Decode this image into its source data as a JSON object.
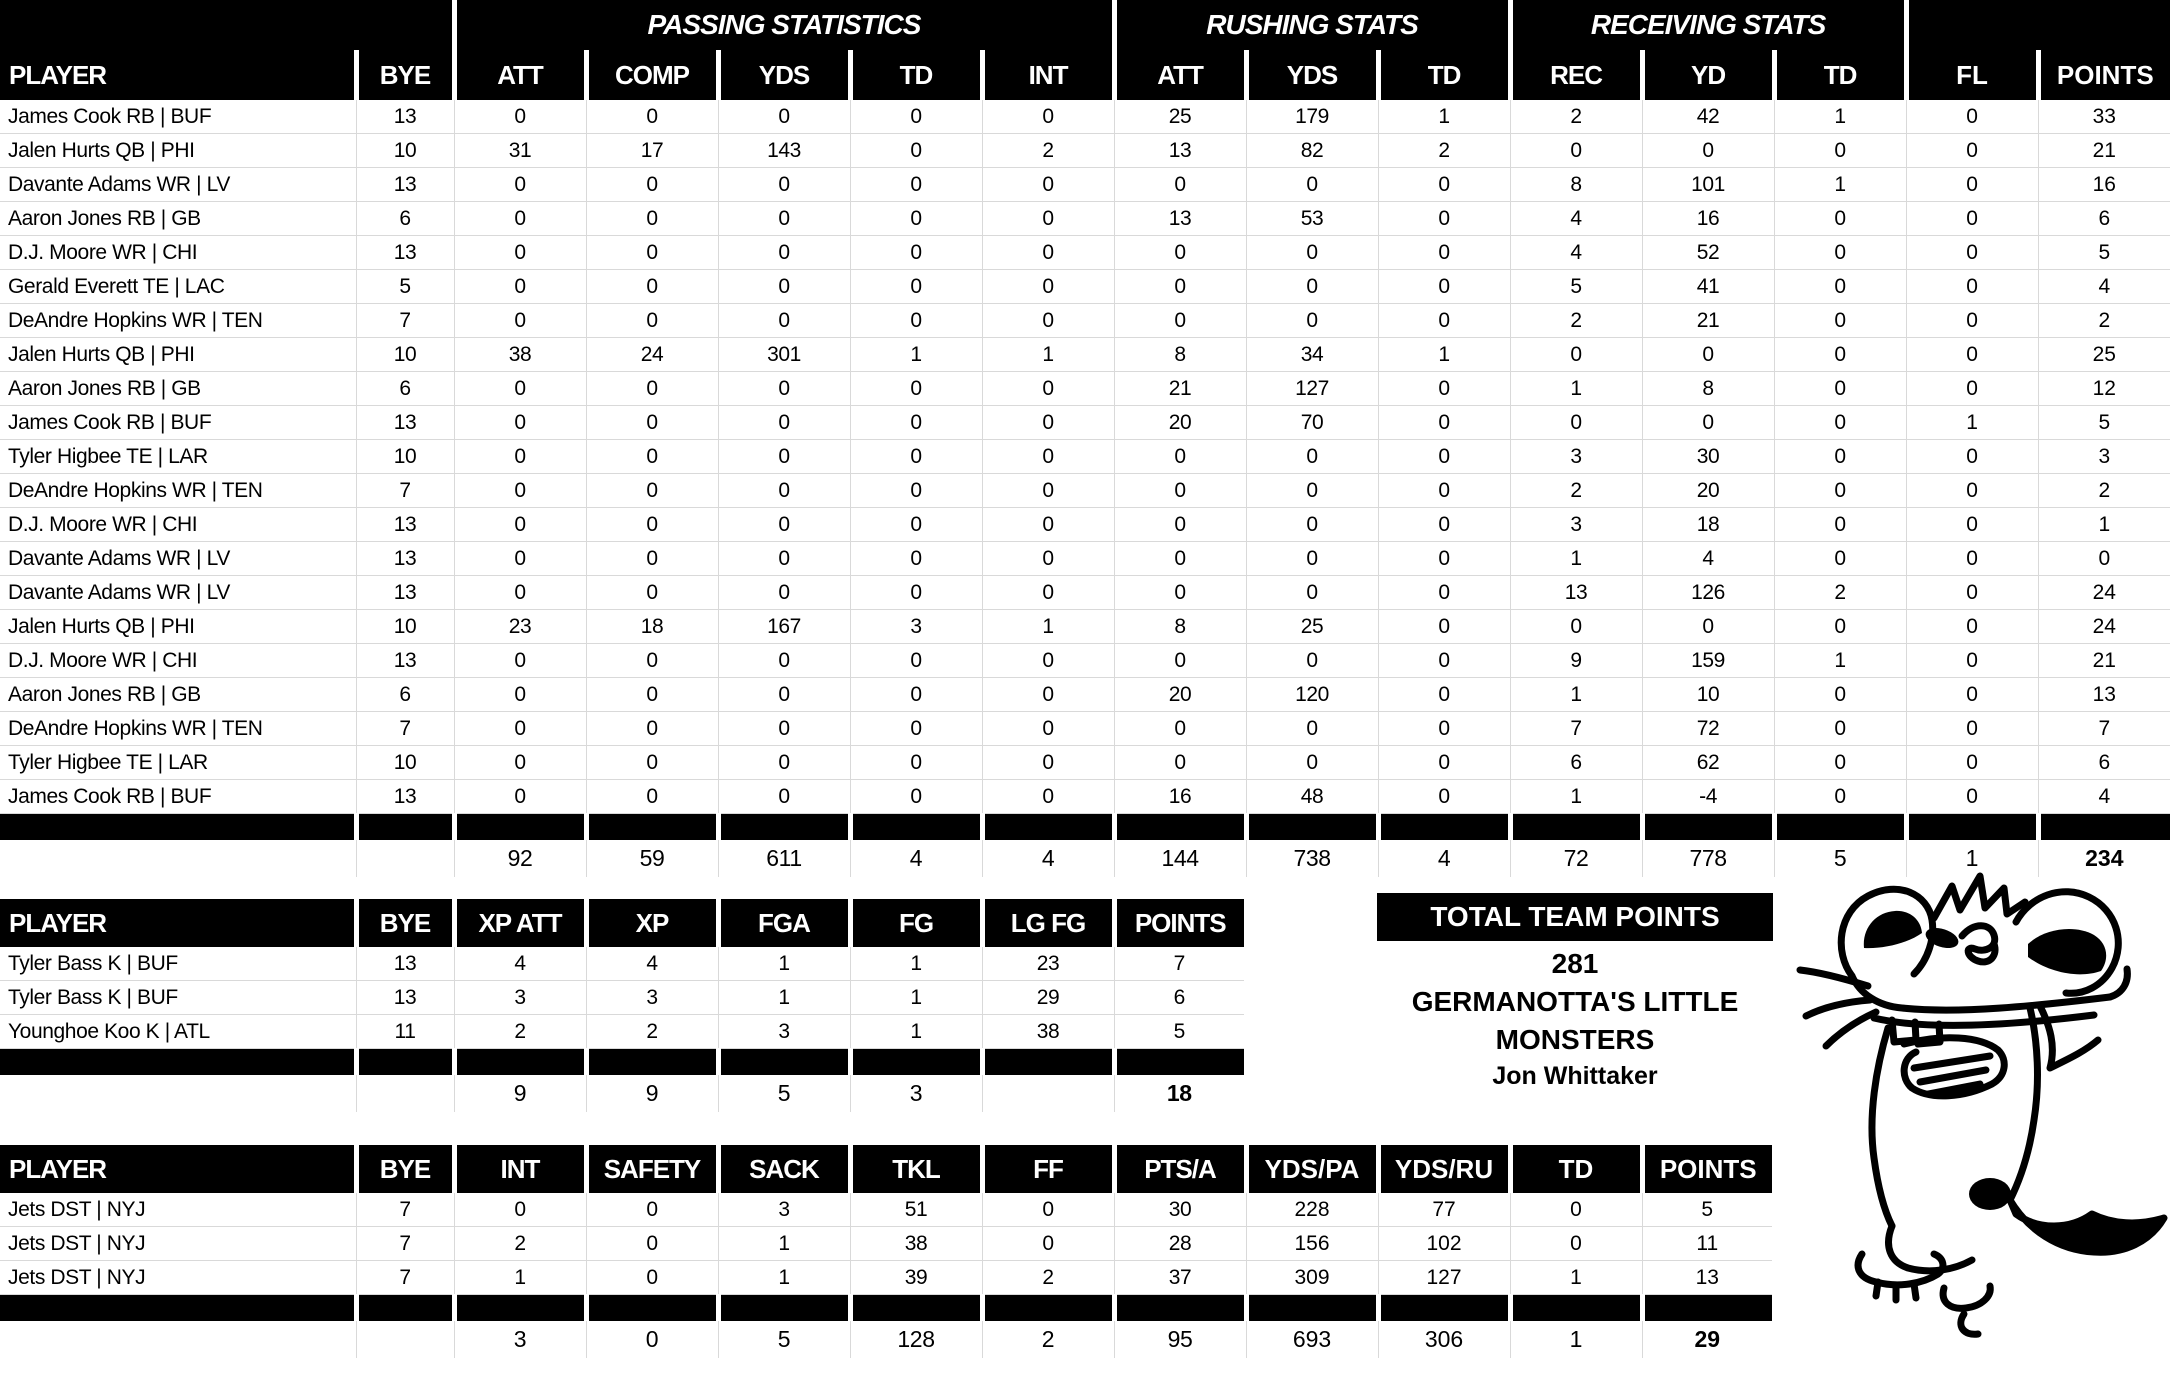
{
  "colors": {
    "header_bg": "#000000",
    "header_text": "#ffffff",
    "grid_line": "#d9d9d9",
    "body_text": "#000000",
    "page_bg": "#ffffff"
  },
  "icons": {
    "mascot": "rat-doodle-drawing"
  },
  "main_table": {
    "group_headers": [
      {
        "label": "",
        "span": 2
      },
      {
        "label": "PASSING STATISTICS",
        "span": 5
      },
      {
        "label": "RUSHING STATS",
        "span": 3
      },
      {
        "label": "RECEIVING STATS",
        "span": 3
      },
      {
        "label": "",
        "span": 2
      }
    ],
    "columns": [
      "PLAYER",
      "BYE",
      "ATT",
      "COMP",
      "YDS",
      "TD",
      "INT",
      "ATT",
      "YDS",
      "TD",
      "REC",
      "YD",
      "TD",
      "FL",
      "POINTS"
    ],
    "rows": [
      [
        "James Cook RB | BUF",
        13,
        0,
        0,
        0,
        0,
        0,
        25,
        179,
        1,
        2,
        42,
        1,
        0,
        33
      ],
      [
        "Jalen Hurts QB | PHI",
        10,
        31,
        17,
        143,
        0,
        2,
        13,
        82,
        2,
        0,
        0,
        0,
        0,
        21
      ],
      [
        "Davante Adams WR | LV",
        13,
        0,
        0,
        0,
        0,
        0,
        0,
        0,
        0,
        8,
        101,
        1,
        0,
        16
      ],
      [
        "Aaron Jones RB | GB",
        6,
        0,
        0,
        0,
        0,
        0,
        13,
        53,
        0,
        4,
        16,
        0,
        0,
        6
      ],
      [
        "D.J. Moore WR | CHI",
        13,
        0,
        0,
        0,
        0,
        0,
        0,
        0,
        0,
        4,
        52,
        0,
        0,
        5
      ],
      [
        "Gerald Everett TE | LAC",
        5,
        0,
        0,
        0,
        0,
        0,
        0,
        0,
        0,
        5,
        41,
        0,
        0,
        4
      ],
      [
        "DeAndre Hopkins WR | TEN",
        7,
        0,
        0,
        0,
        0,
        0,
        0,
        0,
        0,
        2,
        21,
        0,
        0,
        2
      ],
      [
        "Jalen Hurts QB | PHI",
        10,
        38,
        24,
        301,
        1,
        1,
        8,
        34,
        1,
        0,
        0,
        0,
        0,
        25
      ],
      [
        "Aaron Jones RB | GB",
        6,
        0,
        0,
        0,
        0,
        0,
        21,
        127,
        0,
        1,
        8,
        0,
        0,
        12
      ],
      [
        "James Cook RB | BUF",
        13,
        0,
        0,
        0,
        0,
        0,
        20,
        70,
        0,
        0,
        0,
        0,
        1,
        5
      ],
      [
        "Tyler Higbee TE | LAR",
        10,
        0,
        0,
        0,
        0,
        0,
        0,
        0,
        0,
        3,
        30,
        0,
        0,
        3
      ],
      [
        "DeAndre Hopkins WR | TEN",
        7,
        0,
        0,
        0,
        0,
        0,
        0,
        0,
        0,
        2,
        20,
        0,
        0,
        2
      ],
      [
        "D.J. Moore WR | CHI",
        13,
        0,
        0,
        0,
        0,
        0,
        0,
        0,
        0,
        3,
        18,
        0,
        0,
        1
      ],
      [
        "Davante Adams WR | LV",
        13,
        0,
        0,
        0,
        0,
        0,
        0,
        0,
        0,
        1,
        4,
        0,
        0,
        0
      ],
      [
        "Davante Adams WR | LV",
        13,
        0,
        0,
        0,
        0,
        0,
        0,
        0,
        0,
        13,
        126,
        2,
        0,
        24
      ],
      [
        "Jalen Hurts QB | PHI",
        10,
        23,
        18,
        167,
        3,
        1,
        8,
        25,
        0,
        0,
        0,
        0,
        0,
        24
      ],
      [
        "D.J. Moore WR | CHI",
        13,
        0,
        0,
        0,
        0,
        0,
        0,
        0,
        0,
        9,
        159,
        1,
        0,
        21
      ],
      [
        "Aaron Jones RB | GB",
        6,
        0,
        0,
        0,
        0,
        0,
        20,
        120,
        0,
        1,
        10,
        0,
        0,
        13
      ],
      [
        "DeAndre Hopkins WR | TEN",
        7,
        0,
        0,
        0,
        0,
        0,
        0,
        0,
        0,
        7,
        72,
        0,
        0,
        7
      ],
      [
        "Tyler Higbee TE | LAR",
        10,
        0,
        0,
        0,
        0,
        0,
        0,
        0,
        0,
        6,
        62,
        0,
        0,
        6
      ],
      [
        "James Cook RB | BUF",
        13,
        0,
        0,
        0,
        0,
        0,
        16,
        48,
        0,
        1,
        -4,
        0,
        0,
        4
      ]
    ],
    "totals": [
      "",
      "",
      92,
      59,
      611,
      4,
      4,
      144,
      738,
      4,
      72,
      778,
      5,
      1,
      234
    ]
  },
  "kicker_table": {
    "columns": [
      "PLAYER",
      "BYE",
      "XP ATT",
      "XP",
      "FGA",
      "FG",
      "LG FG",
      "POINTS"
    ],
    "rows": [
      [
        "Tyler Bass K | BUF",
        13,
        4,
        4,
        1,
        1,
        23,
        7
      ],
      [
        "Tyler Bass K | BUF",
        13,
        3,
        3,
        1,
        1,
        29,
        6
      ],
      [
        "Younghoe Koo K | ATL",
        11,
        2,
        2,
        3,
        1,
        38,
        5
      ]
    ],
    "totals": [
      "",
      "",
      9,
      9,
      5,
      3,
      "",
      18
    ]
  },
  "dst_table": {
    "columns": [
      "PLAYER",
      "BYE",
      "INT",
      "SAFETY",
      "SACK",
      "TKL",
      "FF",
      "PTS/A",
      "YDS/PA",
      "YDS/RU",
      "TD",
      "POINTS"
    ],
    "rows": [
      [
        "Jets DST | NYJ",
        7,
        0,
        0,
        3,
        51,
        0,
        30,
        228,
        77,
        0,
        5
      ],
      [
        "Jets DST | NYJ",
        7,
        2,
        0,
        1,
        38,
        0,
        28,
        156,
        102,
        0,
        11
      ],
      [
        "Jets DST | NYJ",
        7,
        1,
        0,
        1,
        39,
        2,
        37,
        309,
        127,
        1,
        13
      ]
    ],
    "totals": [
      "",
      "",
      3,
      0,
      5,
      128,
      2,
      95,
      693,
      306,
      1,
      29
    ]
  },
  "team_summary": {
    "title": "TOTAL TEAM POINTS",
    "points": "281",
    "team_name": "GERMANOTTA'S LITTLE MONSTERS",
    "owner": "Jon Whittaker"
  }
}
